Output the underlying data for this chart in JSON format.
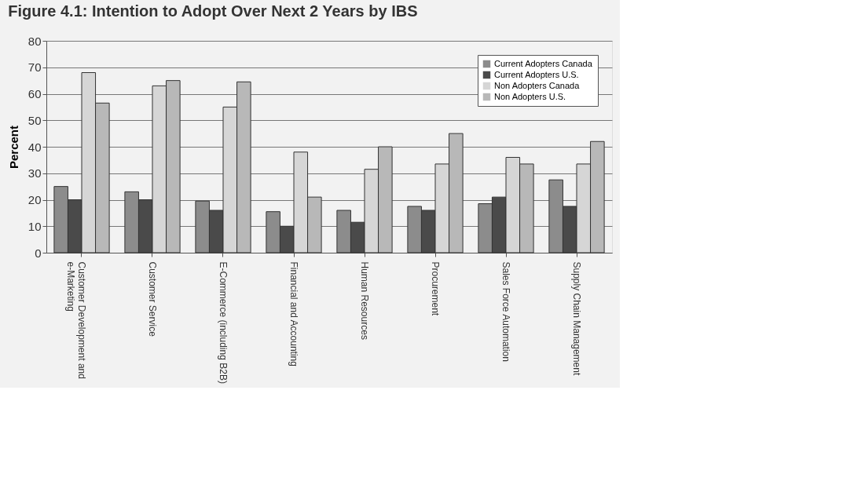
{
  "chart_data": {
    "type": "bar",
    "title": "Figure 4.1: Intention to Adopt Over Next 2 Years by IBS",
    "ylabel": "Percent",
    "categories": [
      "Customer Development and e-Marketing",
      "Customer Service",
      "E-Commerce (including B2B)",
      "Financial and Accounting",
      "Human Resources",
      "Procurement",
      "Sales Force Automation",
      "Supply Chain Management"
    ],
    "series": [
      {
        "name": "Current Adopters Canada",
        "color": "#8c8c8c",
        "values": [
          25,
          23,
          19.5,
          15.5,
          16,
          17.5,
          18.5,
          27.5
        ]
      },
      {
        "name": "Current Adopters U.S.",
        "color": "#4a4a4a",
        "values": [
          20,
          20,
          16,
          10,
          11.5,
          16,
          21,
          17.5
        ]
      },
      {
        "name": "Non Adopters Canada",
        "color": "#d6d6d6",
        "values": [
          68,
          63,
          55,
          38,
          31.5,
          33.5,
          36,
          33.5
        ]
      },
      {
        "name": "Non Adopters U.S.",
        "color": "#b8b8b8",
        "values": [
          56.5,
          65,
          64.5,
          21,
          40,
          45,
          33.5,
          42
        ]
      }
    ],
    "ylim": [
      0,
      80
    ],
    "yticks": [
      0,
      10,
      20,
      30,
      40,
      50,
      60,
      70,
      80
    ],
    "grid": "y",
    "legend": "top right"
  }
}
